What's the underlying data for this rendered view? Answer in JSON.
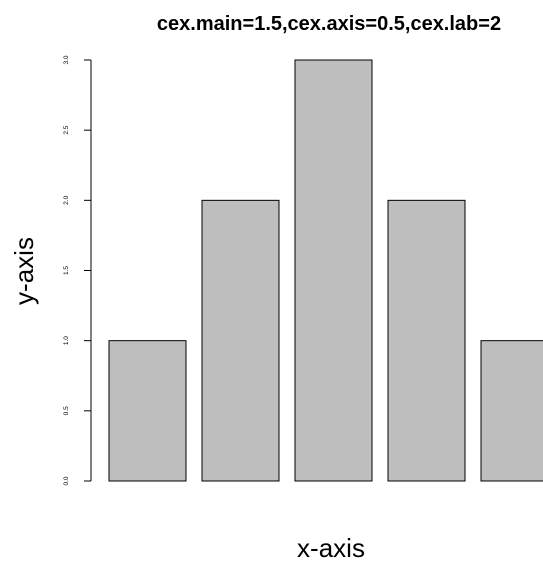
{
  "chart_data": {
    "type": "bar",
    "title": "cex.main=1.5,cex.axis=0.5,cex.lab=2",
    "xlabel": "x-axis",
    "ylabel": "y-axis",
    "values": [
      1,
      2,
      3,
      2,
      1
    ],
    "ylim": [
      0,
      3
    ],
    "yticks": [
      "0.0",
      "0.5",
      "1.0",
      "1.5",
      "2.0",
      "2.5",
      "3.0"
    ],
    "bar_color": "#bebebe",
    "bar_border_color": "#000000",
    "grid": false,
    "legend": "none"
  }
}
